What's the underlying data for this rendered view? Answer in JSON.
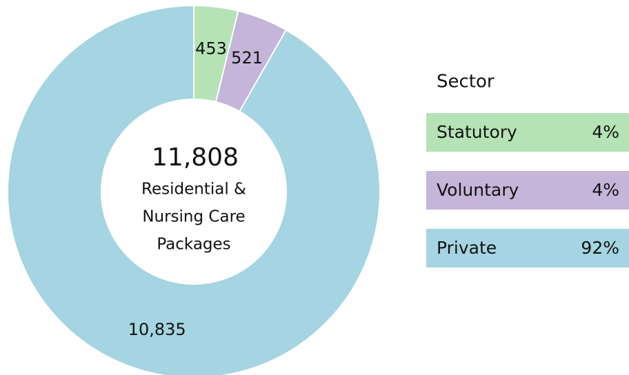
{
  "chart_data": {
    "type": "donut",
    "categories": [
      "Statutory",
      "Voluntary",
      "Private"
    ],
    "values": [
      453,
      521,
      10835
    ],
    "value_labels": [
      "453",
      "521",
      "10,835"
    ],
    "colors": [
      "#b5e3b6",
      "#c4b5d9",
      "#a5d4e2"
    ],
    "total_label": "11,808",
    "center_text": [
      "Residential &",
      "Nursing Care",
      "Packages"
    ],
    "legend_title": "Sector",
    "legend_values": [
      "4%",
      "4%",
      "92%"
    ]
  }
}
